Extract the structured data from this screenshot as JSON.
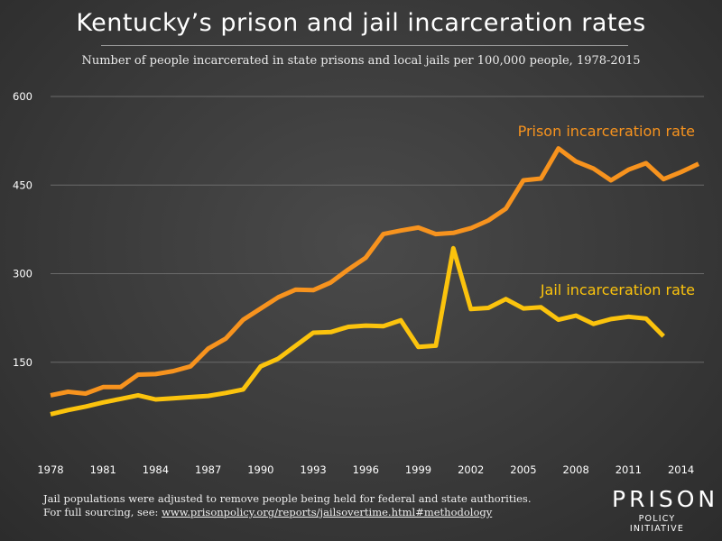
{
  "chart_data": {
    "type": "line",
    "title": "Kentucky’s prison and jail incarceration rates",
    "subtitle": "Number of people incarcerated in state prisons and local jails per 100,000 people, 1978-2015",
    "ylim": [
      0,
      600
    ],
    "yticks": [
      150,
      300,
      450,
      600
    ],
    "xticks": [
      1978,
      1981,
      1984,
      1987,
      1990,
      1993,
      1996,
      1999,
      2002,
      2005,
      2008,
      2011,
      2014
    ],
    "xlim": [
      1978,
      2015
    ],
    "series": [
      {
        "name": "Prison incarceration rate",
        "color": "#f7931e",
        "x": [
          1978,
          1979,
          1980,
          1981,
          1982,
          1983,
          1984,
          1985,
          1986,
          1987,
          1988,
          1989,
          1990,
          1991,
          1992,
          1993,
          1994,
          1995,
          1996,
          1997,
          1998,
          1999,
          2000,
          2001,
          2002,
          2003,
          2004,
          2005,
          2006,
          2007,
          2008,
          2009,
          2010,
          2011,
          2012,
          2013,
          2014,
          2015
        ],
        "values": [
          94,
          100,
          97,
          108,
          108,
          129,
          130,
          135,
          143,
          173,
          190,
          222,
          241,
          260,
          273,
          272,
          285,
          307,
          327,
          367,
          373,
          378,
          367,
          369,
          377,
          390,
          410,
          458,
          461,
          512,
          490,
          478,
          458,
          476,
          487,
          460,
          472,
          486
        ]
      },
      {
        "name": "Jail incarceration rate",
        "color": "#fbc30d",
        "x": [
          1978,
          1979,
          1980,
          1981,
          1982,
          1983,
          1984,
          1985,
          1986,
          1987,
          1988,
          1989,
          1990,
          1991,
          1992,
          1993,
          1994,
          1995,
          1996,
          1997,
          1998,
          1999,
          2000,
          2001,
          2002,
          2003,
          2004,
          2005,
          2006,
          2007,
          2008,
          2009,
          2010,
          2011,
          2012,
          2013
        ],
        "values": [
          62,
          69,
          75,
          82,
          88,
          94,
          87,
          89,
          91,
          93,
          98,
          104,
          143,
          156,
          178,
          200,
          201,
          210,
          212,
          211,
          221,
          176,
          178,
          343,
          240,
          242,
          257,
          241,
          243,
          222,
          229,
          215,
          223,
          227,
          224,
          194
        ]
      }
    ]
  },
  "labels": {
    "prison": "Prison incarceration rate",
    "jail": "Jail incarceration rate"
  },
  "footnote": {
    "line1": "Jail populations were adjusted to remove people being held for federal and state authorities.",
    "line2_prefix": "For full sourcing, see: ",
    "line2_link": "www.prisonpolicy.org/reports/jailsovertime.html#methodology"
  },
  "logo": {
    "main": "PRISON",
    "sub": "POLICY INITIATIVE"
  }
}
